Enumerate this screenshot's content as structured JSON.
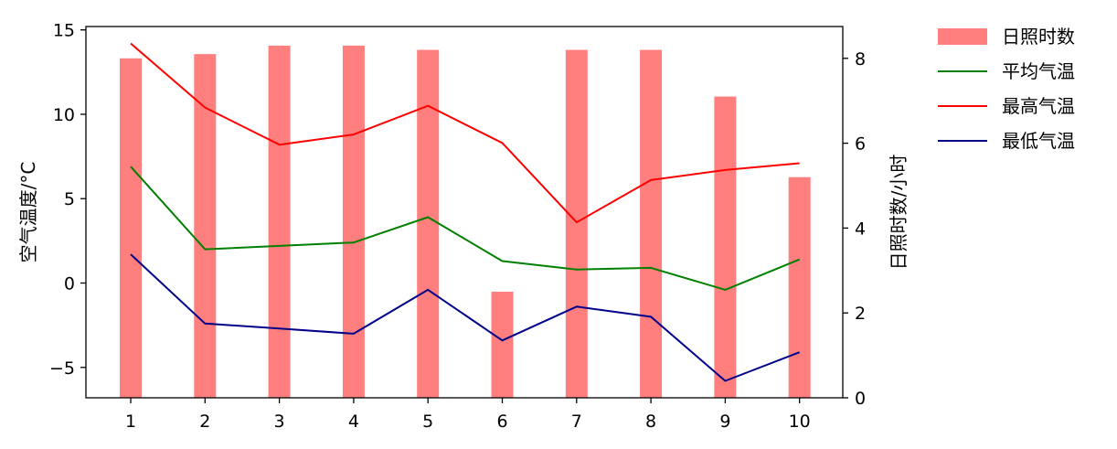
{
  "chart_data": {
    "type": "bar+line",
    "x": [
      1,
      2,
      3,
      4,
      5,
      6,
      7,
      8,
      9,
      10
    ],
    "x_ticks": [
      "1",
      "2",
      "3",
      "4",
      "5",
      "6",
      "7",
      "8",
      "9",
      "10"
    ],
    "left_axis": {
      "label": "空气温度/°C",
      "ylim": [
        -6.8,
        15.2
      ],
      "ticks": [
        -5,
        0,
        5,
        10,
        15
      ],
      "tick_labels": [
        "−5",
        "0",
        "5",
        "10",
        "15"
      ]
    },
    "right_axis": {
      "label": "日照时数/小时",
      "ylim": [
        0,
        8.75
      ],
      "ticks": [
        0,
        2,
        4,
        6,
        8
      ],
      "tick_labels": [
        "0",
        "2",
        "4",
        "6",
        "8"
      ]
    },
    "bars": {
      "name": "日照时数",
      "axis": "right",
      "color": "#ff7f7f",
      "values": [
        8.0,
        8.1,
        8.3,
        8.3,
        8.2,
        2.5,
        8.2,
        8.2,
        7.1,
        5.2
      ]
    },
    "series": [
      {
        "name": "平均气温",
        "axis": "left",
        "color": "#008000",
        "values": [
          6.9,
          2.0,
          2.2,
          2.4,
          3.9,
          1.3,
          0.8,
          0.9,
          -0.4,
          1.4
        ]
      },
      {
        "name": "最高气温",
        "axis": "left",
        "color": "#ff0000",
        "values": [
          14.2,
          10.4,
          8.2,
          8.8,
          10.5,
          8.3,
          3.6,
          6.1,
          6.7,
          7.1
        ]
      },
      {
        "name": "最低气温",
        "axis": "left",
        "color": "#00008b",
        "values": [
          1.7,
          -2.4,
          -2.7,
          -3.0,
          -0.4,
          -3.4,
          -1.4,
          -2.0,
          -5.8,
          -4.1
        ]
      }
    ],
    "legend": {
      "placement": "outside-top-right",
      "entries": [
        {
          "label": "日照时数",
          "kind": "bar",
          "color": "#ff7f7f"
        },
        {
          "label": "平均气温",
          "kind": "line",
          "color": "#008000"
        },
        {
          "label": "最高气温",
          "kind": "line",
          "color": "#ff0000"
        },
        {
          "label": "最低气温",
          "kind": "line",
          "color": "#00008b"
        }
      ]
    },
    "grid": false
  }
}
